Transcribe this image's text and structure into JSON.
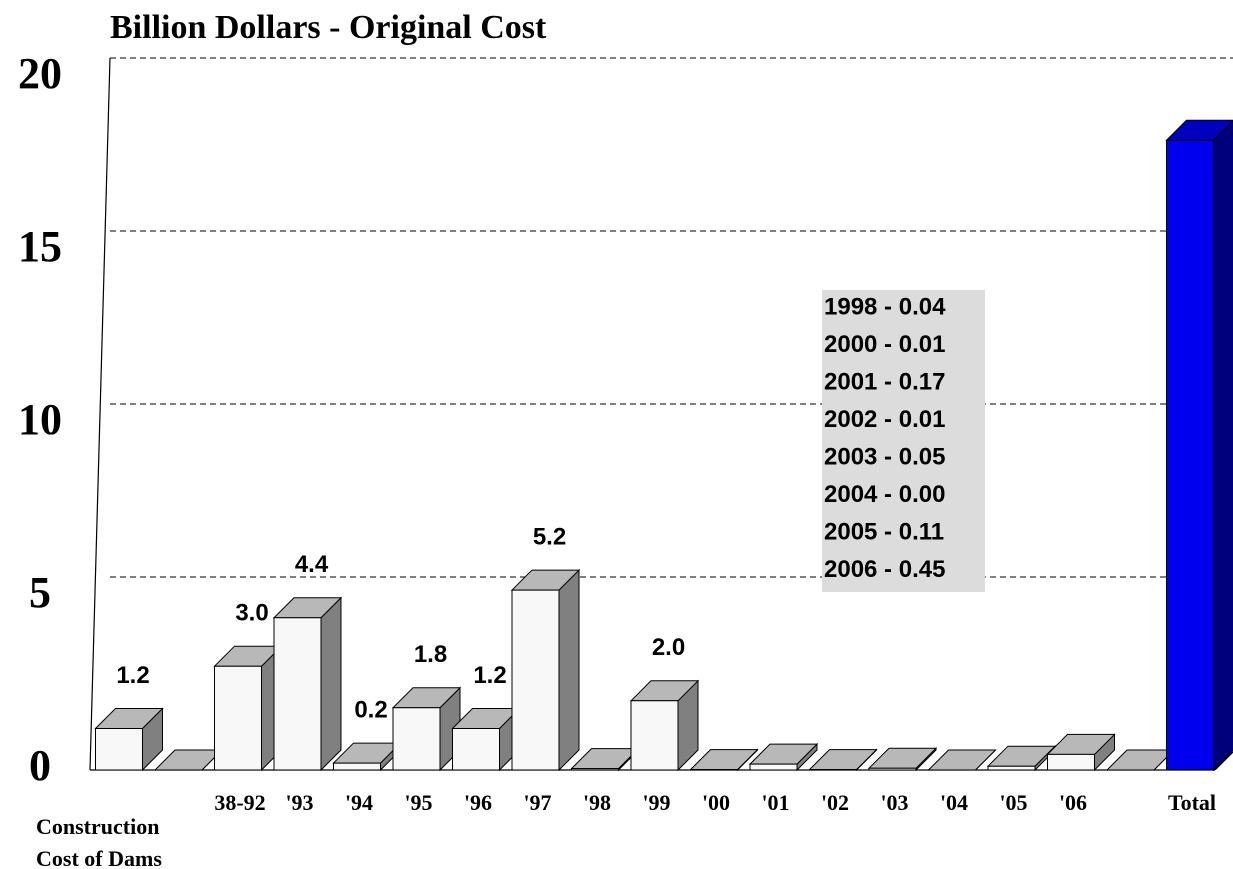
{
  "chart_data": {
    "type": "bar3d",
    "title": "Billion Dollars - Original Cost",
    "categories": [
      null,
      null,
      "38-92",
      "'93",
      "'94",
      "'95",
      "'96",
      "'97",
      "'98",
      "'99",
      "'00",
      "'01",
      "'02",
      "'03",
      "'04",
      "'05",
      "'06",
      null,
      "Total"
    ],
    "values": [
      1.2,
      0,
      3.0,
      4.4,
      0.2,
      1.8,
      1.2,
      5.2,
      0.04,
      2.0,
      0.01,
      0.17,
      0.01,
      0.05,
      0.0,
      0.11,
      0.45,
      0,
      18.2
    ],
    "value_labels": [
      "1.2",
      null,
      "3.0",
      "4.4",
      "0.2",
      "1.8",
      "1.2",
      "5.2",
      null,
      "2.0",
      null,
      null,
      null,
      null,
      null,
      null,
      null,
      null,
      null
    ],
    "colors": [
      "#f8f8f8",
      "#f8f8f8",
      "#f8f8f8",
      "#f8f8f8",
      "#f8f8f8",
      "#f8f8f8",
      "#f8f8f8",
      "#f8f8f8",
      "#f8f8f8",
      "#f8f8f8",
      "#f8f8f8",
      "#f8f8f8",
      "#f8f8f8",
      "#f8f8f8",
      "#f8f8f8",
      "#f8f8f8",
      "#f8f8f8",
      "#f8f8f8",
      "#0000ee"
    ],
    "ylim": [
      0,
      20
    ],
    "yticks": [
      0,
      5,
      10,
      15,
      20
    ],
    "grid": true,
    "x_note": [
      "Construction",
      "Cost of Dams"
    ],
    "annotation": [
      "1998 - 0.04",
      "2000 - 0.01",
      "2001 - 0.17",
      "2002 - 0.01",
      "2003 - 0.05",
      "2004 - 0.00",
      "2005 - 0.11",
      "2006 - 0.45"
    ]
  }
}
